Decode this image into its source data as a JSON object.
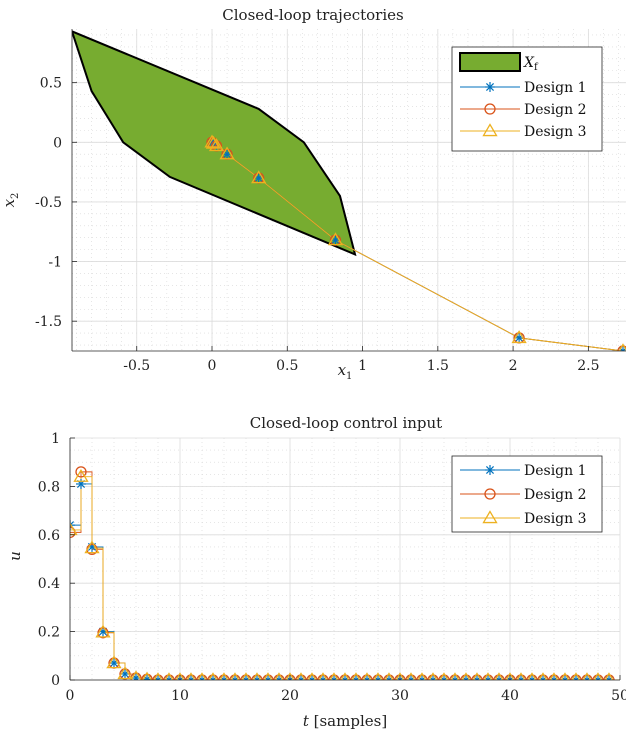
{
  "chart_data": [
    {
      "type": "line",
      "title": "Closed-loop trajectories",
      "xlabel": "x_1",
      "ylabel": "x_2",
      "xlim": [
        -0.93,
        2.75
      ],
      "ylim": [
        -1.75,
        0.95
      ],
      "xticks": [
        -0.5,
        0,
        0.5,
        1,
        1.5,
        2,
        2.5
      ],
      "xtick_labels": [
        "-0.5",
        "0",
        "0.5",
        "1",
        "1.5",
        "2",
        "2.5"
      ],
      "yticks": [
        -1.5,
        -1,
        -0.5,
        0,
        0.5
      ],
      "ytick_labels": [
        "-1.5",
        "-1",
        "-0.5",
        "0",
        "0.5"
      ],
      "grid": true,
      "legend_position": "top-right",
      "region": {
        "name": "X_f",
        "color": "#77ac30",
        "vertices": [
          [
            -0.93,
            0.93
          ],
          [
            -0.8,
            0.43
          ],
          [
            -0.59,
            0.0
          ],
          [
            -0.28,
            -0.29
          ],
          [
            0.95,
            -0.94
          ],
          [
            0.85,
            -0.45
          ],
          [
            0.61,
            0.0
          ],
          [
            0.31,
            0.28
          ]
        ]
      },
      "series": [
        {
          "name": "Design 1",
          "marker": "asterisk",
          "color": "#0072bd",
          "x": [
            2.73,
            2.04,
            0.82,
            0.31,
            0.1,
            0.03,
            0.01,
            0.0
          ],
          "y": [
            -1.75,
            -1.64,
            -0.82,
            -0.3,
            -0.1,
            -0.03,
            -0.01,
            0.0
          ]
        },
        {
          "name": "Design 2",
          "marker": "circle",
          "color": "#d95319",
          "x": [
            2.73,
            2.04,
            0.82,
            0.31,
            0.1,
            0.03,
            0.01,
            0.0
          ],
          "y": [
            -1.75,
            -1.64,
            -0.82,
            -0.3,
            -0.1,
            -0.03,
            -0.01,
            0.0
          ]
        },
        {
          "name": "Design 3",
          "marker": "triangle",
          "color": "#edb120",
          "x": [
            2.73,
            2.04,
            0.82,
            0.31,
            0.1,
            0.03,
            0.01,
            0.0
          ],
          "y": [
            -1.75,
            -1.64,
            -0.82,
            -0.3,
            -0.1,
            -0.03,
            -0.01,
            0.0
          ]
        }
      ]
    },
    {
      "type": "line",
      "step": true,
      "title": "Closed-loop control input",
      "xlabel": "t [samples]",
      "ylabel": "u",
      "xlim": [
        0,
        50
      ],
      "ylim": [
        0,
        1
      ],
      "xticks": [
        0,
        10,
        20,
        30,
        40,
        50
      ],
      "xtick_labels": [
        "0",
        "10",
        "20",
        "30",
        "40",
        "50"
      ],
      "yticks": [
        0,
        0.2,
        0.4,
        0.6,
        0.8,
        1
      ],
      "ytick_labels": [
        "0",
        "0.2",
        "0.4",
        "0.6",
        "0.8",
        "1"
      ],
      "grid": true,
      "legend_position": "top-right",
      "series": [
        {
          "name": "Design 1",
          "marker": "asterisk",
          "color": "#0072bd",
          "head": [
            0.64,
            0.81,
            0.55,
            0.2,
            0.07,
            0.025,
            0.008,
            0.003
          ]
        },
        {
          "name": "Design 2",
          "marker": "circle",
          "color": "#d95319",
          "head": [
            0.61,
            0.86,
            0.54,
            0.195,
            0.07,
            0.025,
            0.008,
            0.003
          ]
        },
        {
          "name": "Design 3",
          "marker": "triangle",
          "color": "#edb120",
          "head": [
            0.62,
            0.84,
            0.545,
            0.197,
            0.07,
            0.025,
            0.008,
            0.003
          ]
        }
      ],
      "samples": 50
    }
  ]
}
